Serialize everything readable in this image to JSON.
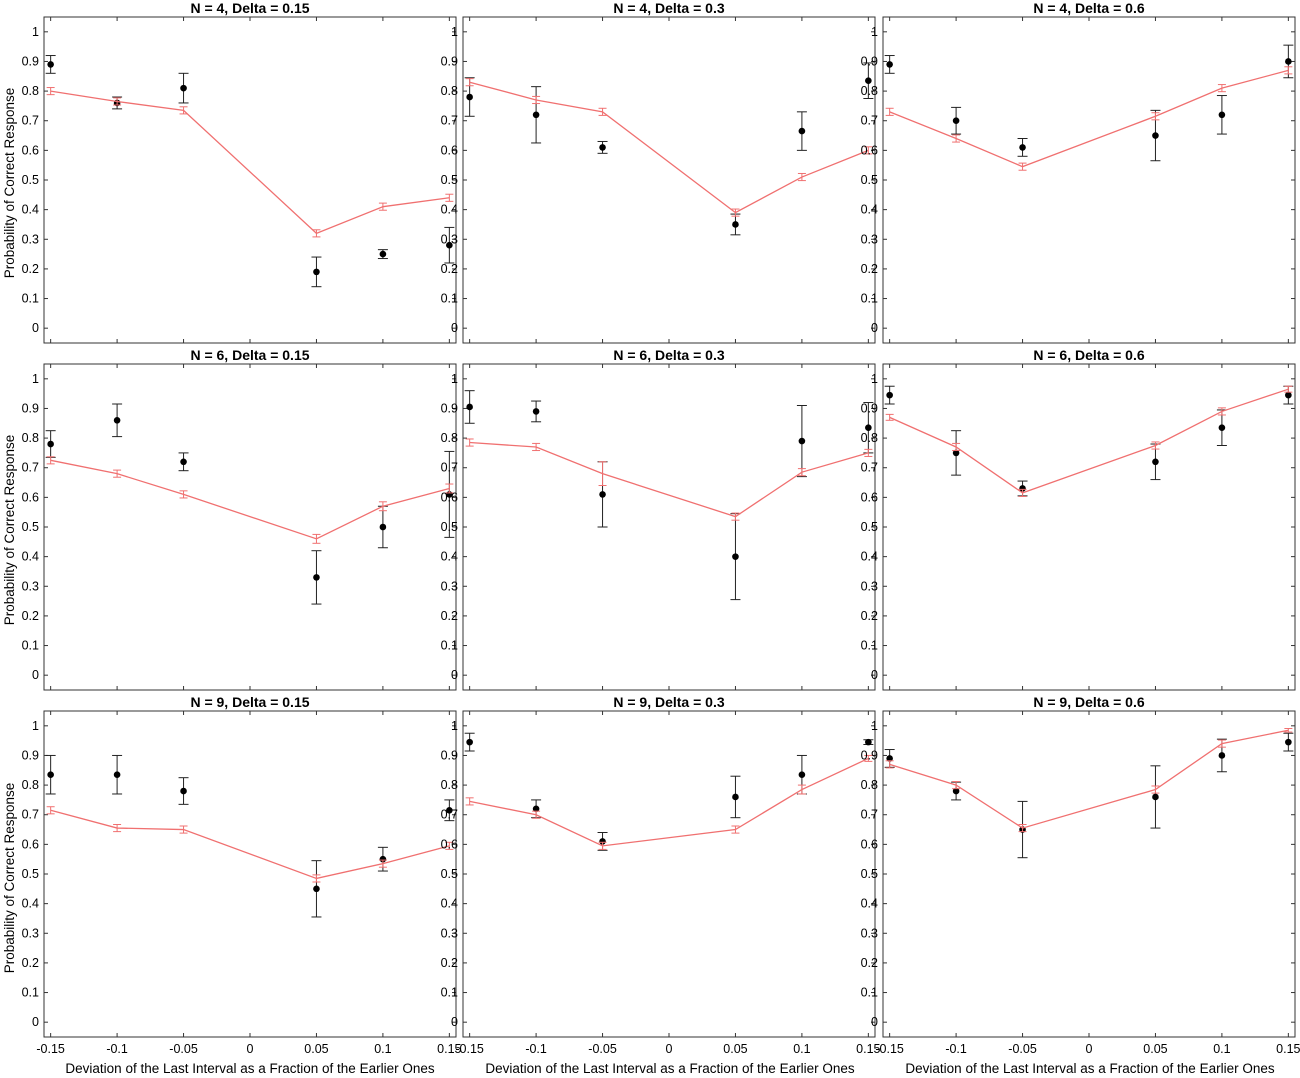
{
  "figure": {
    "ylabel": "Probability of Correct Response",
    "xlabel": "Deviation of the Last Interval as a Fraction of the Earlier Ones"
  },
  "chart_data": [
    {
      "type": "line",
      "title": "N = 4, Delta = 0.15",
      "x": [
        -0.15,
        -0.1,
        -0.05,
        0.05,
        0.1,
        0.15
      ],
      "xticks": [
        "-0.15",
        "-0.1",
        "-0.05",
        "0",
        "0.05",
        "0.1",
        "0.15"
      ],
      "yticks": [
        "0",
        "0.1",
        "0.2",
        "0.3",
        "0.4",
        "0.5",
        "0.6",
        "0.7",
        "0.8",
        "0.9",
        "1"
      ],
      "xlim": [
        -0.155,
        0.155
      ],
      "ylim": [
        -0.05,
        1.05
      ],
      "series": [
        {
          "kind": "data",
          "color": "#000000",
          "values": [
            0.89,
            0.76,
            0.81,
            0.19,
            0.25,
            0.28
          ],
          "err": [
            0.03,
            0.02,
            0.05,
            0.05,
            0.015,
            0.06
          ]
        },
        {
          "kind": "model",
          "color": "#f07070",
          "values": [
            0.8,
            0.765,
            0.735,
            0.32,
            0.41,
            0.44
          ],
          "err": [
            0.012,
            0.012,
            0.012,
            0.012,
            0.012,
            0.012
          ]
        }
      ]
    },
    {
      "type": "line",
      "title": "N = 4, Delta = 0.3",
      "x": [
        -0.15,
        -0.1,
        -0.05,
        0.05,
        0.1,
        0.15
      ],
      "xticks": [
        "-0.15",
        "-0.1",
        "-0.05",
        "0",
        "0.05",
        "0.1",
        "0.15"
      ],
      "yticks": [
        "0",
        "0.1",
        "0.2",
        "0.3",
        "0.4",
        "0.5",
        "0.6",
        "0.7",
        "0.8",
        "0.9",
        "1"
      ],
      "xlim": [
        -0.155,
        0.155
      ],
      "ylim": [
        -0.05,
        1.05
      ],
      "series": [
        {
          "kind": "data",
          "color": "#000000",
          "values": [
            0.78,
            0.72,
            0.61,
            0.35,
            0.665,
            0.835
          ],
          "err": [
            0.065,
            0.095,
            0.02,
            0.035,
            0.065,
            0.06
          ]
        },
        {
          "kind": "model",
          "color": "#f07070",
          "values": [
            0.83,
            0.77,
            0.73,
            0.39,
            0.51,
            0.6
          ],
          "err": [
            0.012,
            0.012,
            0.012,
            0.012,
            0.012,
            0.012
          ]
        }
      ]
    },
    {
      "type": "line",
      "title": "N = 4, Delta = 0.6",
      "x": [
        -0.15,
        -0.1,
        -0.05,
        0.05,
        0.1,
        0.15
      ],
      "xticks": [
        "-0.15",
        "-0.1",
        "-0.05",
        "0",
        "0.05",
        "0.1",
        "0.15"
      ],
      "yticks": [
        "0",
        "0.1",
        "0.2",
        "0.3",
        "0.4",
        "0.5",
        "0.6",
        "0.7",
        "0.8",
        "0.9",
        "1"
      ],
      "xlim": [
        -0.155,
        0.155
      ],
      "ylim": [
        -0.05,
        1.05
      ],
      "series": [
        {
          "kind": "data",
          "color": "#000000",
          "values": [
            0.89,
            0.7,
            0.61,
            0.65,
            0.72,
            0.9
          ],
          "err": [
            0.03,
            0.045,
            0.03,
            0.085,
            0.065,
            0.055
          ]
        },
        {
          "kind": "model",
          "color": "#f07070",
          "values": [
            0.73,
            0.64,
            0.545,
            0.715,
            0.81,
            0.87
          ],
          "err": [
            0.012,
            0.012,
            0.012,
            0.012,
            0.012,
            0.012
          ]
        }
      ]
    },
    {
      "type": "line",
      "title": "N = 6, Delta = 0.15",
      "x": [
        -0.15,
        -0.1,
        -0.05,
        0.05,
        0.1,
        0.15
      ],
      "xticks": [
        "-0.15",
        "-0.1",
        "-0.05",
        "0",
        "0.05",
        "0.1",
        "0.15"
      ],
      "yticks": [
        "0",
        "0.1",
        "0.2",
        "0.3",
        "0.4",
        "0.5",
        "0.6",
        "0.7",
        "0.8",
        "0.9",
        "1"
      ],
      "xlim": [
        -0.155,
        0.155
      ],
      "ylim": [
        -0.05,
        1.05
      ],
      "series": [
        {
          "kind": "data",
          "color": "#000000",
          "values": [
            0.78,
            0.86,
            0.72,
            0.33,
            0.5,
            0.61
          ],
          "err": [
            0.045,
            0.055,
            0.03,
            0.09,
            0.07,
            0.145
          ]
        },
        {
          "kind": "model",
          "color": "#f07070",
          "values": [
            0.725,
            0.68,
            0.61,
            0.46,
            0.57,
            0.63
          ],
          "err": [
            0.012,
            0.012,
            0.012,
            0.015,
            0.015,
            0.015
          ]
        }
      ]
    },
    {
      "type": "line",
      "title": "N = 6, Delta = 0.3",
      "x": [
        -0.15,
        -0.1,
        -0.05,
        0.05,
        0.1,
        0.15
      ],
      "xticks": [
        "-0.15",
        "-0.1",
        "-0.05",
        "0",
        "0.05",
        "0.1",
        "0.15"
      ],
      "yticks": [
        "0",
        "0.1",
        "0.2",
        "0.3",
        "0.4",
        "0.5",
        "0.6",
        "0.7",
        "0.8",
        "0.9",
        "1"
      ],
      "xlim": [
        -0.155,
        0.155
      ],
      "ylim": [
        -0.05,
        1.05
      ],
      "series": [
        {
          "kind": "data",
          "color": "#000000",
          "values": [
            0.905,
            0.89,
            0.61,
            0.4,
            0.79,
            0.835
          ],
          "err": [
            0.055,
            0.035,
            0.11,
            0.145,
            0.12,
            0.085
          ]
        },
        {
          "kind": "model",
          "color": "#f07070",
          "values": [
            0.785,
            0.77,
            0.68,
            0.535,
            0.685,
            0.75
          ],
          "err": [
            0.012,
            0.012,
            0.04,
            0.012,
            0.012,
            0.012
          ]
        }
      ]
    },
    {
      "type": "line",
      "title": "N = 6, Delta = 0.6",
      "x": [
        -0.15,
        -0.1,
        -0.05,
        0.05,
        0.1,
        0.15
      ],
      "xticks": [
        "-0.15",
        "-0.1",
        "-0.05",
        "0",
        "0.05",
        "0.1",
        "0.15"
      ],
      "yticks": [
        "0",
        "0.1",
        "0.2",
        "0.3",
        "0.4",
        "0.5",
        "0.6",
        "0.7",
        "0.8",
        "0.9",
        "1"
      ],
      "xlim": [
        -0.155,
        0.155
      ],
      "ylim": [
        -0.05,
        1.05
      ],
      "series": [
        {
          "kind": "data",
          "color": "#000000",
          "values": [
            0.945,
            0.75,
            0.63,
            0.72,
            0.835,
            0.945
          ],
          "err": [
            0.03,
            0.075,
            0.025,
            0.06,
            0.06,
            0.03
          ]
        },
        {
          "kind": "model",
          "color": "#f07070",
          "values": [
            0.87,
            0.77,
            0.615,
            0.775,
            0.89,
            0.965
          ],
          "err": [
            0.01,
            0.012,
            0.012,
            0.012,
            0.012,
            0.01
          ]
        }
      ]
    },
    {
      "type": "line",
      "title": "N = 9, Delta = 0.15",
      "x": [
        -0.15,
        -0.1,
        -0.05,
        0.05,
        0.1,
        0.15
      ],
      "xticks": [
        "-0.15",
        "-0.1",
        "-0.05",
        "0",
        "0.05",
        "0.1",
        "0.15"
      ],
      "yticks": [
        "0",
        "0.1",
        "0.2",
        "0.3",
        "0.4",
        "0.5",
        "0.6",
        "0.7",
        "0.8",
        "0.9",
        "1"
      ],
      "xlim": [
        -0.155,
        0.155
      ],
      "ylim": [
        -0.05,
        1.05
      ],
      "series": [
        {
          "kind": "data",
          "color": "#000000",
          "values": [
            0.835,
            0.835,
            0.78,
            0.45,
            0.55,
            0.715
          ],
          "err": [
            0.065,
            0.065,
            0.045,
            0.095,
            0.04,
            0.035
          ]
        },
        {
          "kind": "model",
          "color": "#f07070",
          "values": [
            0.715,
            0.655,
            0.65,
            0.485,
            0.535,
            0.595
          ],
          "err": [
            0.012,
            0.012,
            0.012,
            0.012,
            0.012,
            0.012
          ]
        }
      ]
    },
    {
      "type": "line",
      "title": "N = 9, Delta = 0.3",
      "x": [
        -0.15,
        -0.1,
        -0.05,
        0.05,
        0.1,
        0.15
      ],
      "xticks": [
        "-0.15",
        "-0.1",
        "-0.05",
        "0",
        "0.05",
        "0.1",
        "0.15"
      ],
      "yticks": [
        "0",
        "0.1",
        "0.2",
        "0.3",
        "0.4",
        "0.5",
        "0.6",
        "0.7",
        "0.8",
        "0.9",
        "1"
      ],
      "xlim": [
        -0.155,
        0.155
      ],
      "ylim": [
        -0.05,
        1.05
      ],
      "series": [
        {
          "kind": "data",
          "color": "#000000",
          "values": [
            0.945,
            0.72,
            0.61,
            0.76,
            0.835,
            0.945
          ],
          "err": [
            0.03,
            0.03,
            0.03,
            0.07,
            0.065,
            0.008
          ]
        },
        {
          "kind": "model",
          "color": "#f07070",
          "values": [
            0.745,
            0.7,
            0.595,
            0.65,
            0.785,
            0.89
          ],
          "err": [
            0.012,
            0.012,
            0.012,
            0.012,
            0.015,
            0.01
          ]
        }
      ]
    },
    {
      "type": "line",
      "title": "N = 9, Delta = 0.6",
      "x": [
        -0.15,
        -0.1,
        -0.05,
        0.05,
        0.1,
        0.15
      ],
      "xticks": [
        "-0.15",
        "-0.1",
        "-0.05",
        "0",
        "0.05",
        "0.1",
        "0.15"
      ],
      "yticks": [
        "0",
        "0.1",
        "0.2",
        "0.3",
        "0.4",
        "0.5",
        "0.6",
        "0.7",
        "0.8",
        "0.9",
        "1"
      ],
      "xlim": [
        -0.155,
        0.155
      ],
      "ylim": [
        -0.05,
        1.05
      ],
      "series": [
        {
          "kind": "data",
          "color": "#000000",
          "values": [
            0.89,
            0.78,
            0.65,
            0.76,
            0.9,
            0.945
          ],
          "err": [
            0.03,
            0.03,
            0.095,
            0.105,
            0.055,
            0.03
          ]
        },
        {
          "kind": "model",
          "color": "#f07070",
          "values": [
            0.87,
            0.8,
            0.655,
            0.785,
            0.94,
            0.985
          ],
          "err": [
            0.012,
            0.012,
            0.012,
            0.012,
            0.012,
            0.006
          ]
        }
      ]
    }
  ]
}
